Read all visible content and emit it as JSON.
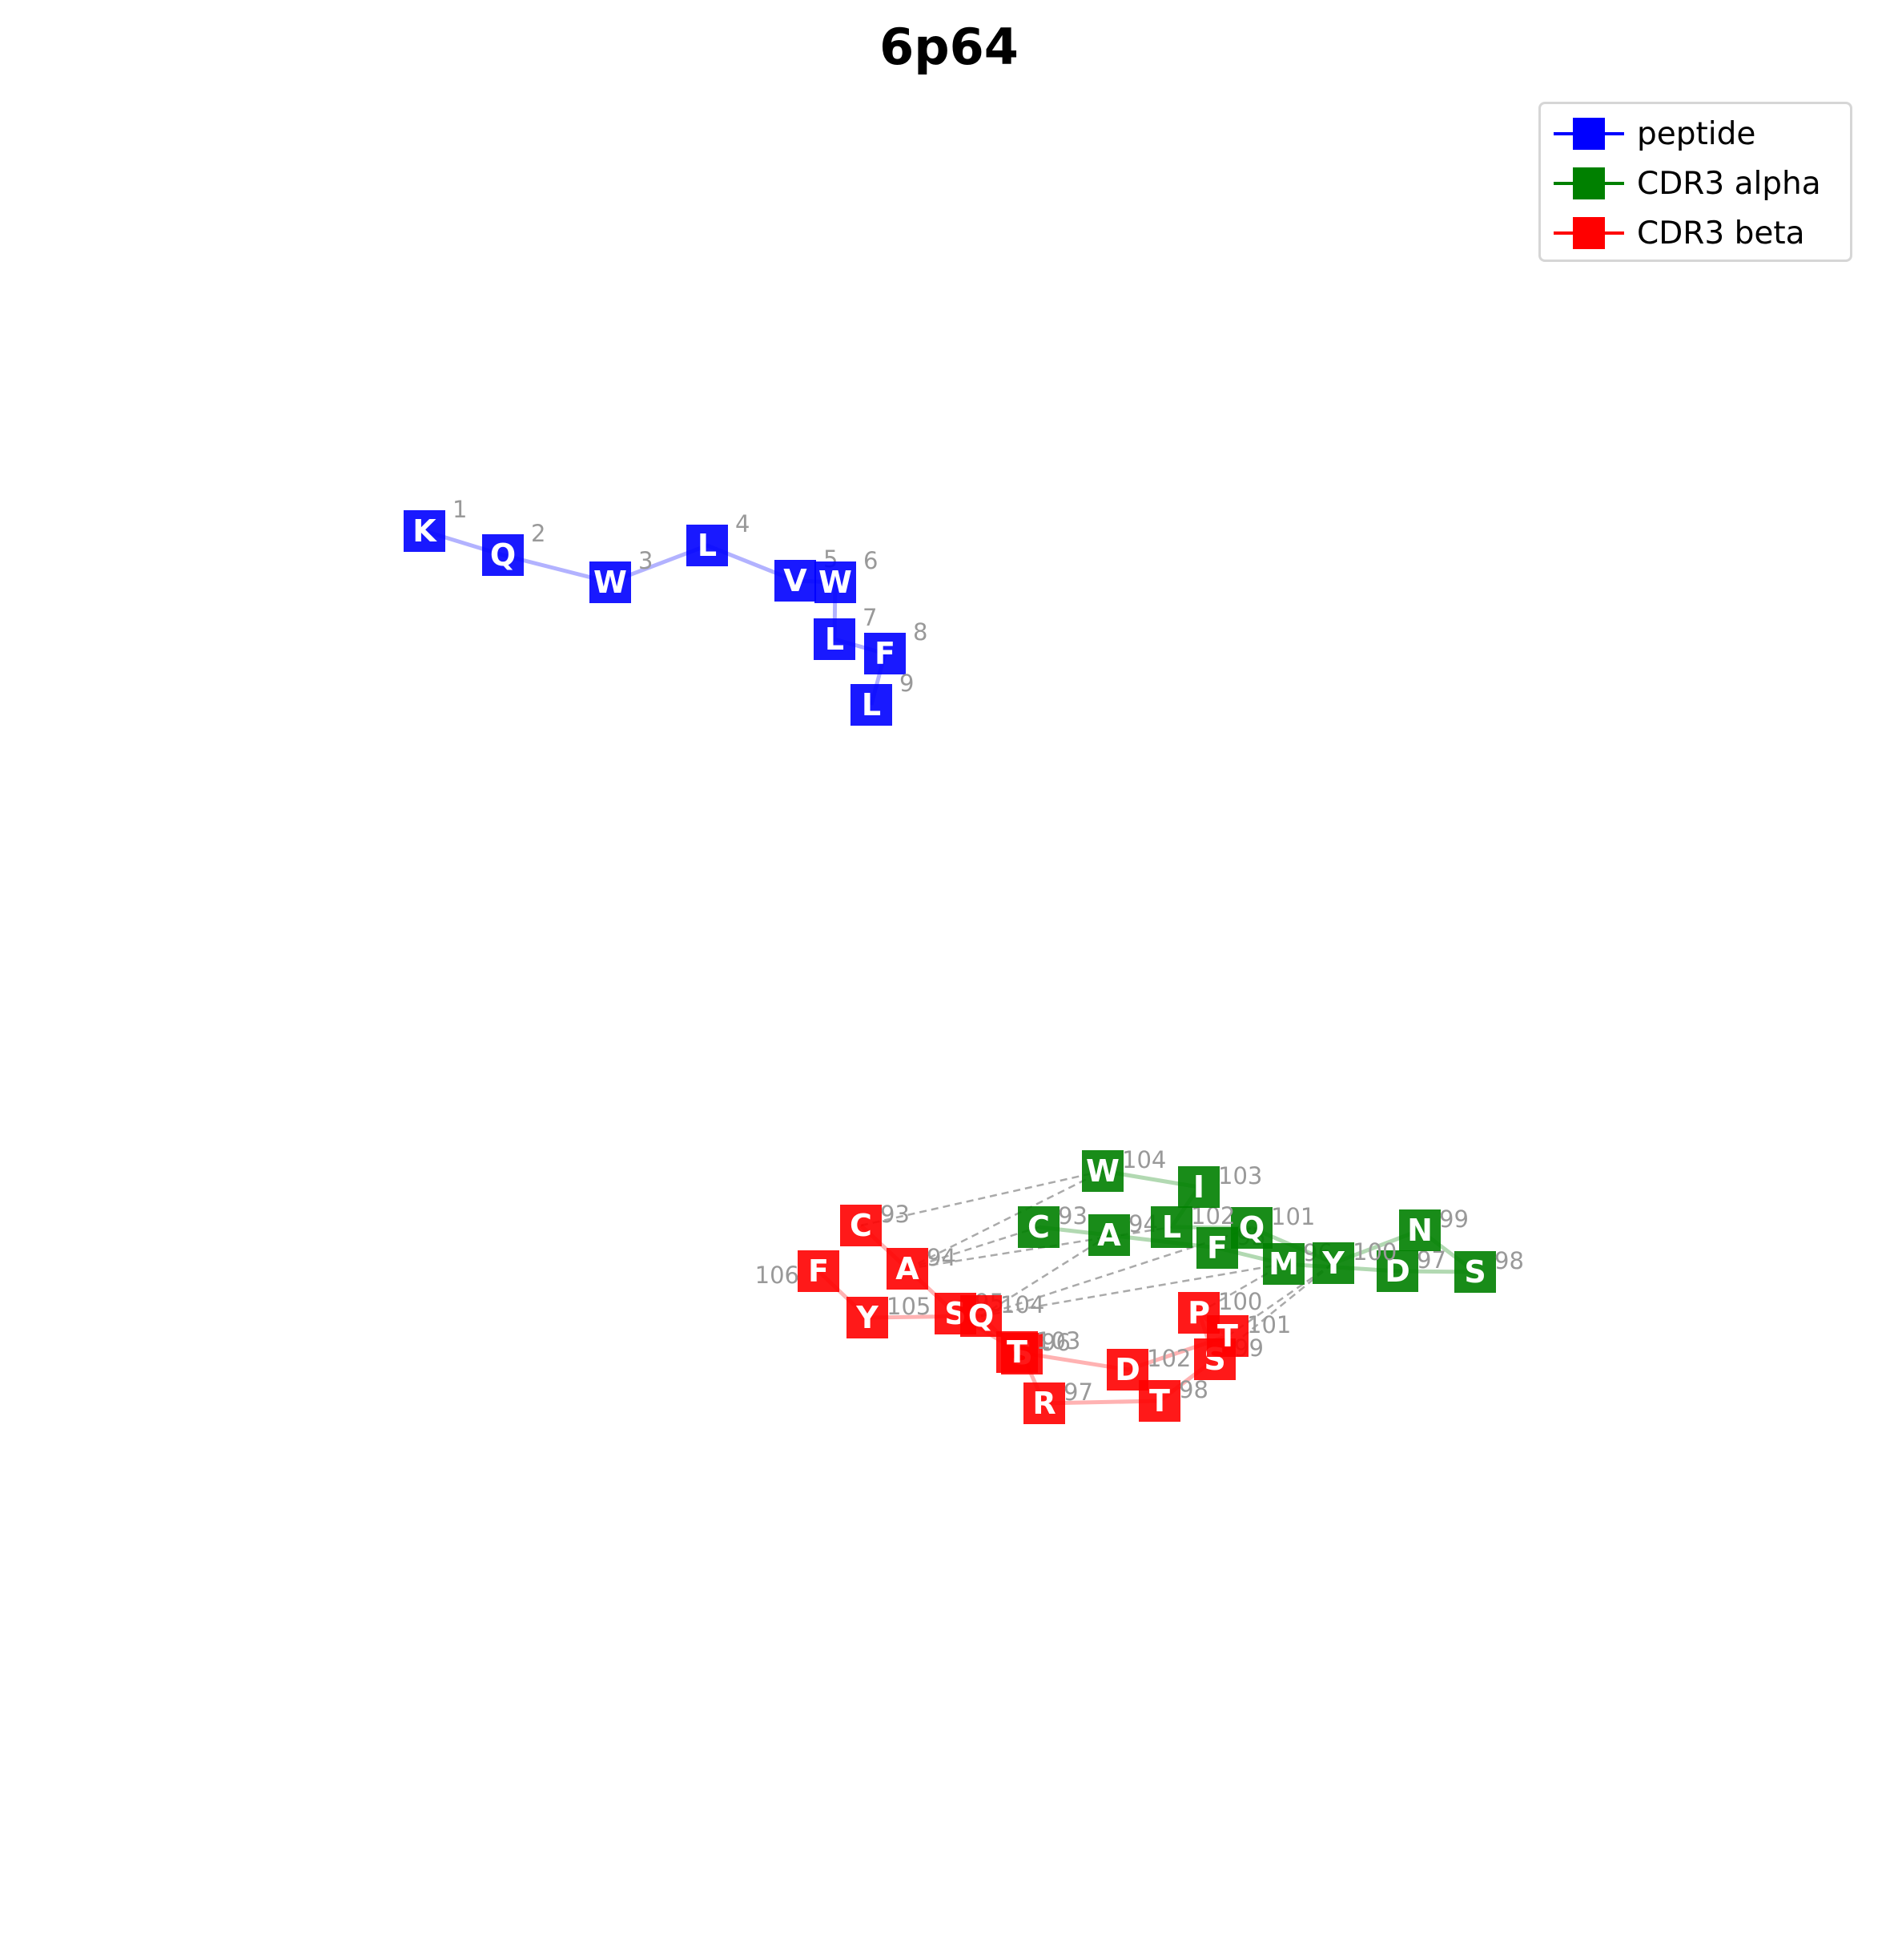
{
  "title": "6p64",
  "legend": [
    {
      "label": "peptide",
      "color": "#0000ff"
    },
    {
      "label": "CDR3 alpha",
      "color": "#008000"
    },
    {
      "label": "CDR3 beta",
      "color": "#ff0000"
    }
  ],
  "chains": [
    {
      "name": "peptide",
      "color": "#0000ff",
      "residues": [
        {
          "aa": "K",
          "num": "1"
        },
        {
          "aa": "Q",
          "num": "2"
        },
        {
          "aa": "W",
          "num": "3"
        },
        {
          "aa": "L",
          "num": "4"
        },
        {
          "aa": "V",
          "num": "5"
        },
        {
          "aa": "W",
          "num": "6"
        },
        {
          "aa": "L",
          "num": "7"
        },
        {
          "aa": "F",
          "num": "8"
        },
        {
          "aa": "L",
          "num": "9"
        }
      ]
    },
    {
      "name": "CDR3 alpha",
      "color": "#008000",
      "residues": [
        {
          "aa": "C",
          "num": "93"
        },
        {
          "aa": "A",
          "num": "94"
        },
        {
          "aa": "F",
          "num": "95"
        },
        {
          "aa": "M",
          "num": "96"
        },
        {
          "aa": "D",
          "num": "97"
        },
        {
          "aa": "S",
          "num": "98"
        },
        {
          "aa": "N",
          "num": "99"
        },
        {
          "aa": "Y",
          "num": "100"
        },
        {
          "aa": "Q",
          "num": "101"
        },
        {
          "aa": "L",
          "num": "102"
        },
        {
          "aa": "I",
          "num": "103"
        },
        {
          "aa": "W",
          "num": "104"
        }
      ]
    },
    {
      "name": "CDR3 beta",
      "color": "#ff0000",
      "residues": [
        {
          "aa": "C",
          "num": "93"
        },
        {
          "aa": "A",
          "num": "94"
        },
        {
          "aa": "S",
          "num": "95"
        },
        {
          "aa": "S",
          "num": "96"
        },
        {
          "aa": "R",
          "num": "97"
        },
        {
          "aa": "T",
          "num": "98"
        },
        {
          "aa": "S",
          "num": "99"
        },
        {
          "aa": "P",
          "num": "100"
        },
        {
          "aa": "T",
          "num": "101"
        },
        {
          "aa": "D",
          "num": "102"
        },
        {
          "aa": "T",
          "num": "103"
        },
        {
          "aa": "Q",
          "num": "104"
        },
        {
          "aa": "Y",
          "num": "105"
        },
        {
          "aa": "F",
          "num": "106"
        }
      ]
    }
  ]
}
